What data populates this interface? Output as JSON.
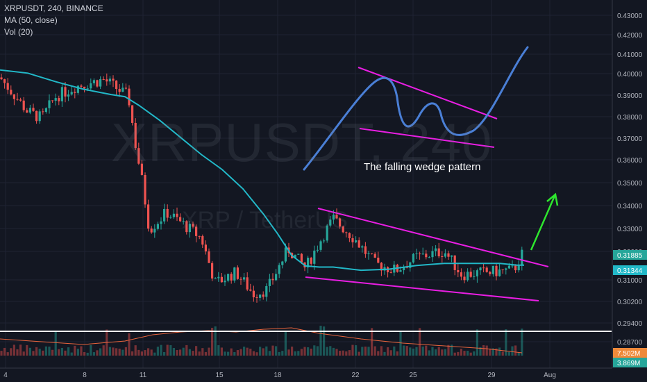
{
  "header": {
    "symbol_line": "XRPUSDT, 240, BINANCE",
    "ma_line": "MA (50, close)",
    "vol_line": "Vol (20)"
  },
  "watermark": {
    "main": "XRPUSDT, 240",
    "sub": "XRP / TetherUS"
  },
  "annotation": "The falling wedge pattern",
  "colors": {
    "background": "#131722",
    "candle_up": "#26a69a",
    "candle_down": "#ef5350",
    "ma_line": "#22b8c8",
    "wedge_lines": "#e91ee3",
    "sketch_line": "#4a7fd6",
    "breakout_arrow": "#2ee62e",
    "support_line": "#ffffff",
    "volume_ma": "#e8643c"
  },
  "chart_data": {
    "type": "candlestick",
    "timeframe": "240",
    "exchange": "BINANCE",
    "y_ticks": [
      "0.43000",
      "0.42000",
      "0.41000",
      "0.40000",
      "0.39000",
      "0.38000",
      "0.37000",
      "0.36000",
      "0.35000",
      "0.34000",
      "0.33000",
      "0.32000",
      "0.31000",
      "0.30200",
      "0.29400",
      "0.28700"
    ],
    "x_ticks": [
      "4",
      "8",
      "11",
      "15",
      "18",
      "22",
      "25",
      "29",
      "Aug"
    ],
    "price_labels": {
      "last_price": "0.31885",
      "ma_value": "0.31344"
    },
    "volume_labels": {
      "volume": "7.502M",
      "volume_ma": "3.869M"
    },
    "support_price": 0.2925,
    "ma50": [
      [
        0,
        0.4045
      ],
      [
        40,
        0.403
      ],
      [
        80,
        0.399
      ],
      [
        120,
        0.3955
      ],
      [
        160,
        0.393
      ],
      [
        180,
        0.392
      ],
      [
        200,
        0.388
      ],
      [
        230,
        0.381
      ],
      [
        260,
        0.373
      ],
      [
        290,
        0.365
      ],
      [
        320,
        0.358
      ],
      [
        350,
        0.349
      ],
      [
        380,
        0.337
      ],
      [
        400,
        0.328
      ],
      [
        420,
        0.318
      ],
      [
        440,
        0.313
      ],
      [
        460,
        0.3125
      ],
      [
        480,
        0.3125
      ],
      [
        520,
        0.311
      ],
      [
        560,
        0.3115
      ],
      [
        600,
        0.3132
      ],
      [
        640,
        0.3142
      ],
      [
        680,
        0.3142
      ],
      [
        720,
        0.3142
      ],
      [
        745,
        0.3134
      ],
      [
        755,
        0.3134
      ]
    ],
    "wedge_upper": [
      [
        0.3425,
        "start"
      ],
      [
        0.3145,
        "end"
      ]
    ],
    "wedge_lower": [
      [
        0.3105,
        "start"
      ],
      [
        0.3025,
        "end"
      ]
    ]
  }
}
